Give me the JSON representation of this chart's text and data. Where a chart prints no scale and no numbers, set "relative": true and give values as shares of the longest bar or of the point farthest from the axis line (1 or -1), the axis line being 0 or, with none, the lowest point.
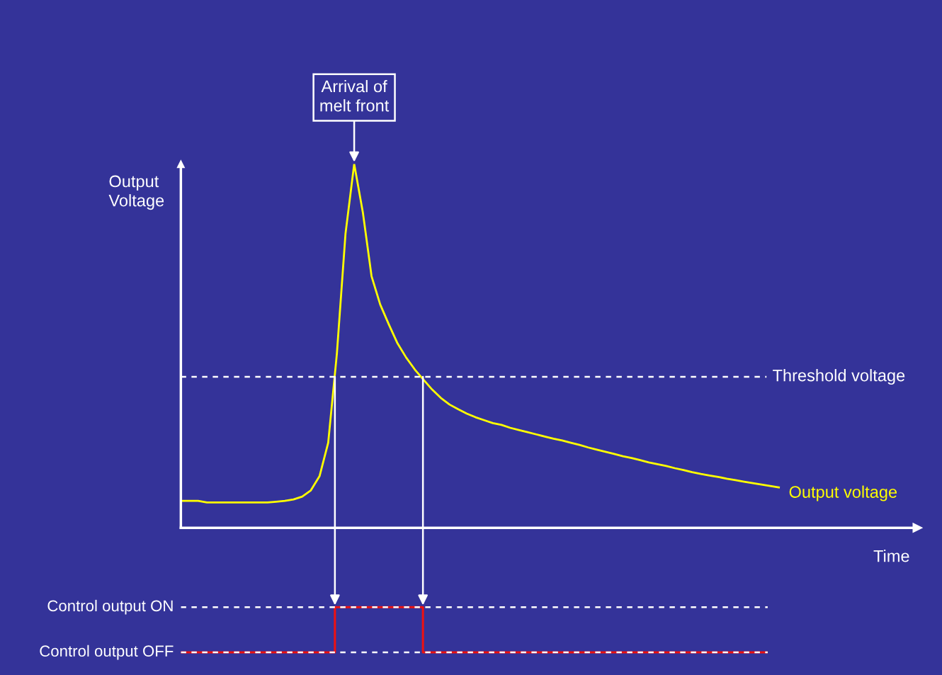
{
  "chart_data": [
    {
      "type": "line",
      "relative": true,
      "xlabel": "Time",
      "ylabel": "Output Voltage",
      "categories": [
        null,
        null,
        null,
        null,
        null,
        null,
        null,
        null,
        null,
        null,
        null,
        null,
        null,
        null,
        null,
        null,
        null,
        null,
        null,
        null,
        null,
        null,
        null,
        null,
        null,
        null,
        null,
        null,
        null,
        null,
        null,
        null,
        null,
        null,
        null,
        null,
        null,
        null,
        null,
        null,
        null,
        null,
        null,
        null,
        null,
        null,
        null,
        null,
        null,
        null,
        null,
        null,
        null,
        null,
        null,
        null,
        null,
        null,
        null,
        null,
        null,
        null,
        null,
        null,
        null,
        null,
        null,
        null,
        null,
        null,
        null,
        null,
        null,
        null,
        null,
        null,
        null,
        null,
        null,
        null,
        null,
        null,
        null,
        null,
        null,
        null
      ],
      "series": [
        {
          "name": "Output voltage",
          "color": "#ffff00",
          "values": [
            0.074,
            0.074,
            0.074,
            0.07,
            0.07,
            0.07,
            0.07,
            0.07,
            0.07,
            0.07,
            0.07,
            0.072,
            0.074,
            0.078,
            0.086,
            0.103,
            0.142,
            0.234,
            0.478,
            0.809,
            1.0,
            0.867,
            0.692,
            0.614,
            0.559,
            0.507,
            0.468,
            0.435,
            0.407,
            0.38,
            0.357,
            0.339,
            0.326,
            0.314,
            0.304,
            0.296,
            0.288,
            0.283,
            0.275,
            0.269,
            0.263,
            0.257,
            0.251,
            0.245,
            0.24,
            0.234,
            0.228,
            0.221,
            0.215,
            0.209,
            0.203,
            0.197,
            0.192,
            0.186,
            0.18,
            0.175,
            0.17,
            0.164,
            0.159,
            0.153,
            0.148,
            0.144,
            0.14,
            0.135,
            0.131,
            0.127,
            0.123,
            0.119,
            0.115,
            0.111,
            null,
            null,
            null,
            null,
            null,
            null,
            null,
            null,
            null,
            null,
            null,
            null,
            null,
            null,
            null,
            null
          ]
        }
      ],
      "ref_lines": [
        {
          "axis": "y",
          "value": 0.415,
          "label": "Threshold voltage",
          "color": "#ffffff",
          "line_style": "dashed"
        }
      ],
      "annotations": [
        "Arrival of melt front"
      ]
    },
    {
      "type": "step",
      "relative": true,
      "line_style": "solid",
      "ref_lines": [
        {
          "axis": "y",
          "value": 1,
          "label": "Control output ON",
          "color": "#ffffff",
          "line_style": "dashed"
        },
        {
          "axis": "y",
          "value": 0,
          "label": "Control output OFF",
          "color": "#ffffff",
          "line_style": "dashed"
        }
      ],
      "categories": [
        null,
        null,
        null,
        null,
        null,
        null,
        null,
        null,
        null,
        null,
        null,
        null,
        null,
        null,
        null,
        null,
        null,
        null,
        null,
        null,
        null,
        null,
        null,
        null,
        null,
        null,
        null,
        null,
        null,
        null,
        null,
        null,
        null,
        null,
        null,
        null,
        null,
        null,
        null,
        null,
        null,
        null,
        null,
        null,
        null,
        null,
        null,
        null,
        null,
        null,
        null,
        null,
        null,
        null,
        null,
        null,
        null,
        null,
        null,
        null,
        null,
        null,
        null,
        null,
        null,
        null,
        null,
        null,
        null,
        null,
        null,
        null,
        null,
        null,
        null,
        null,
        null,
        null,
        null,
        null,
        null
      ],
      "series": [
        {
          "color": "#ee1111",
          "values": [
            0,
            0,
            0,
            0,
            0,
            0,
            0,
            0,
            0,
            0,
            0,
            0,
            0,
            0,
            0,
            0,
            0,
            0,
            0,
            0,
            0,
            1,
            1,
            1,
            1,
            1,
            1,
            1,
            1,
            1,
            1,
            1,
            1,
            0,
            0,
            0,
            0,
            0,
            0,
            0,
            0,
            0,
            0,
            0,
            0,
            0,
            0,
            0,
            0,
            0,
            0,
            0,
            0,
            0,
            0,
            0,
            0,
            0,
            0,
            0,
            0,
            0,
            0,
            0,
            0,
            0,
            0,
            0,
            0,
            0,
            0,
            0,
            0,
            0,
            0,
            0,
            0,
            0,
            0,
            0,
            0
          ]
        }
      ]
    }
  ]
}
